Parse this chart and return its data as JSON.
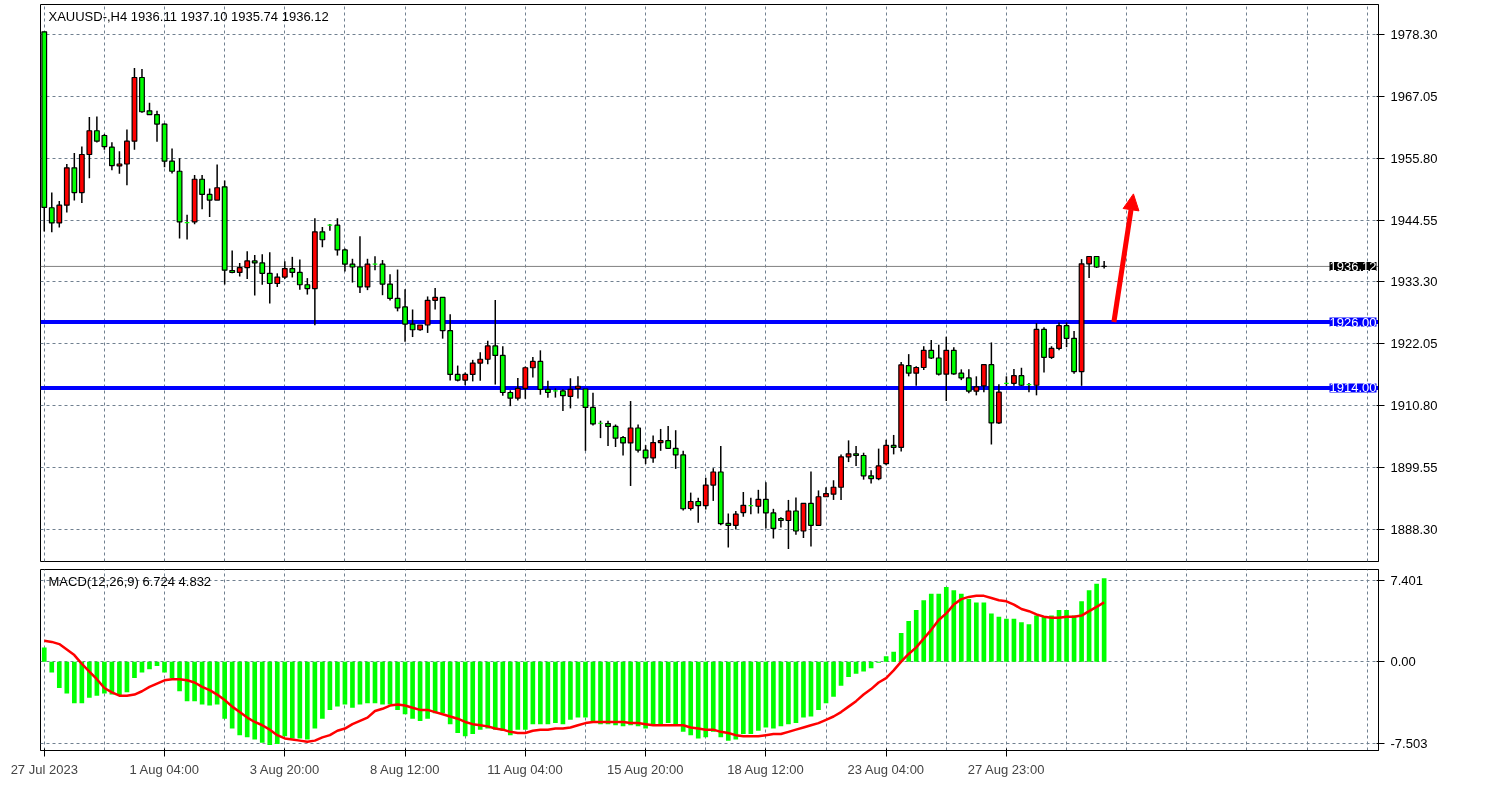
{
  "chart_data": [
    {
      "type": "candlestick",
      "title": "XAUUSD-,H4  1936.11 1937.10 1935.74 1936.12",
      "categories": [
        null,
        null,
        null,
        null,
        null,
        null,
        null,
        null,
        null,
        null,
        null,
        null,
        null,
        null,
        null,
        null,
        null,
        null,
        null,
        null,
        null,
        null,
        null,
        null,
        null,
        null,
        null,
        null,
        null,
        null,
        null,
        null,
        null,
        null,
        null,
        null,
        null,
        null,
        null,
        null,
        null,
        null,
        null,
        null,
        null,
        null,
        null,
        null,
        null,
        null,
        null,
        null,
        null,
        null,
        null,
        null,
        null,
        null,
        null,
        null,
        null,
        null,
        null,
        null,
        null,
        null,
        null,
        null,
        null,
        null,
        null,
        null,
        null,
        null,
        null,
        null,
        null,
        null,
        null,
        null,
        null,
        null,
        null,
        null,
        null,
        null,
        null,
        null,
        null,
        null,
        null,
        null,
        null,
        null,
        null,
        null,
        null,
        null,
        null,
        null,
        null,
        null,
        null,
        null,
        null,
        null,
        null,
        null,
        null,
        null,
        null,
        null,
        null,
        null,
        null,
        null,
        null,
        null,
        null,
        null,
        null,
        null,
        null,
        null,
        null,
        null,
        null,
        null,
        null,
        null,
        null,
        null,
        null,
        null,
        null,
        null,
        null,
        null,
        null,
        null,
        null,
        null,
        null,
        null,
        null,
        null,
        null,
        null,
        null,
        null,
        null,
        null,
        null,
        null,
        null,
        null,
        null,
        null,
        null,
        null,
        null,
        null,
        null,
        null,
        null,
        null,
        null,
        null,
        null,
        null,
        null,
        null,
        null,
        null,
        null,
        null,
        null,
        null
      ],
      "ohlc": [
        [
          1978.82,
          1978.82,
          1942.47,
          1946.86
        ],
        [
          1946.8,
          1949.57,
          1942.36,
          1944.03
        ],
        [
          1944.03,
          1948.01,
          1943.22,
          1947.26
        ],
        [
          1947.26,
          1954.76,
          1945.94,
          1954.07
        ],
        [
          1954.07,
          1956.78,
          1948.13,
          1949.57
        ],
        [
          1949.57,
          1957.94,
          1947.67,
          1956.49
        ],
        [
          1956.49,
          1963.3,
          1952.17,
          1960.82
        ],
        [
          1960.82,
          1963.42,
          1958.69,
          1958.92
        ],
        [
          1959.95,
          1960.24,
          1957.36,
          1957.94
        ],
        [
          1957.82,
          1958.74,
          1953.61,
          1954.47
        ],
        [
          1954.42,
          1957.07,
          1952.97,
          1954.76
        ],
        [
          1954.76,
          1961.05,
          1950.9,
          1958.92
        ],
        [
          1958.92,
          1972.24,
          1957.36,
          1970.51
        ],
        [
          1970.51,
          1972.07,
          1964.11,
          1964.28
        ],
        [
          1964.45,
          1965.9,
          1963.76,
          1963.76
        ],
        [
          1963.76,
          1964.45,
          1958.8,
          1962.03
        ],
        [
          1962.03,
          1962.2,
          1954.19,
          1955.28
        ],
        [
          1955.28,
          1957.59,
          1953.03,
          1953.44
        ],
        [
          1953.44,
          1955.8,
          1941.21,
          1944.21
        ],
        [
          1944.09,
          1945.53,
          1941.03,
          1944.09
        ],
        [
          1944.21,
          1952.74,
          1943.8,
          1951.99
        ],
        [
          1951.99,
          1952.74,
          1946.51,
          1949.22
        ],
        [
          1949.22,
          1950.32,
          1945.13,
          1948.19
        ],
        [
          1948.19,
          1954.65,
          1948.19,
          1950.44
        ],
        [
          1950.61,
          1951.76,
          1932.84,
          1935.44
        ],
        [
          1935.38,
          1939.01,
          1934.86,
          1935.03
        ],
        [
          1935.03,
          1936.76,
          1934.28,
          1935.9
        ],
        [
          1935.9,
          1938.9,
          1933.82,
          1937.11
        ],
        [
          1937.11,
          1938.21,
          1930.82,
          1936.76
        ],
        [
          1936.76,
          1938.32,
          1932.78,
          1934.86
        ],
        [
          1934.86,
          1938.72,
          1929.38,
          1933.01
        ],
        [
          1933.01,
          1934.86,
          1932.38,
          1934.17
        ],
        [
          1934.17,
          1937.05,
          1933.82,
          1935.72
        ],
        [
          1935.72,
          1937.86,
          1934.11,
          1935.03
        ],
        [
          1935.03,
          1937.4,
          1931.86,
          1932.78
        ],
        [
          1932.78,
          1933.99,
          1930.99,
          1932.09
        ],
        [
          1932.09,
          1944.9,
          1925.4,
          1942.42
        ],
        [
          1942.42,
          1943.28,
          1939.59,
          1940.97
        ],
        [
          1943.63,
          1943.86,
          1942.59,
          1943.63
        ],
        [
          1943.63,
          1944.9,
          1938.09,
          1939.13
        ],
        [
          1939.13,
          1939.36,
          1935.2,
          1936.53
        ],
        [
          1936.53,
          1937.51,
          1933.18,
          1936.01
        ],
        [
          1936.01,
          1941.61,
          1931.28,
          1932.38
        ],
        [
          1932.38,
          1937.51,
          1931.8,
          1936.53
        ],
        [
          1936.53,
          1937.97,
          1935.43,
          1936.53
        ],
        [
          1936.53,
          1937.28,
          1930.88,
          1932.9
        ],
        [
          1932.9,
          1934.68,
          1929.9,
          1930.3
        ],
        [
          1930.3,
          1935.55,
          1927.94,
          1928.57
        ],
        [
          1928.74,
          1931.97,
          1922.4,
          1925.63
        ],
        [
          1925.63,
          1928.28,
          1923.26,
          1924.59
        ],
        [
          1924.59,
          1925.45,
          1924.42,
          1925.45
        ],
        [
          1925.45,
          1930.65,
          1924.01,
          1929.95
        ],
        [
          1929.95,
          1932.2,
          1928.28,
          1930.47
        ],
        [
          1930.47,
          1930.47,
          1922.97,
          1924.42
        ],
        [
          1924.42,
          1927.42,
          1915.36,
          1916.45
        ],
        [
          1916.45,
          1918.07,
          1915.19,
          1915.42
        ],
        [
          1915.42,
          1916.8,
          1914.49,
          1916.45
        ],
        [
          1916.45,
          1919.11,
          1915.19,
          1918.53
        ],
        [
          1918.53,
          1920.49,
          1915.3,
          1919.22
        ],
        [
          1919.22,
          1922.57,
          1918.3,
          1921.65
        ],
        [
          1921.65,
          1930.01,
          1914.61,
          1919.92
        ],
        [
          1919.92,
          1921.59,
          1912.59,
          1913.17
        ],
        [
          1913.17,
          1913.57,
          1910.68,
          1912.13
        ],
        [
          1912.13,
          1915.82,
          1911.72,
          1913.92
        ],
        [
          1913.92,
          1917.9,
          1912.01,
          1917.67
        ],
        [
          1917.67,
          1919.63,
          1915.88,
          1918.82
        ],
        [
          1918.82,
          1920.84,
          1912.76,
          1913.74
        ],
        [
          1913.74,
          1915.3,
          1912.19,
          1913.17
        ],
        [
          1913.46,
          1913.92,
          1912.24,
          1913.46
        ],
        [
          1913.46,
          1913.74,
          1909.82,
          1912.59
        ],
        [
          1912.47,
          1915.76,
          1910.28,
          1913.74
        ],
        [
          1913.9,
          1916.11,
          1912.07,
          1914.3
        ],
        [
          1913.8,
          1913.8,
          1902.55,
          1910.45
        ],
        [
          1910.45,
          1913.11,
          1907.17,
          1907.45
        ],
        [
          1907.57,
          1908.03,
          1904.86,
          1907.57
        ],
        [
          1907.51,
          1908.03,
          1903.42,
          1906.99
        ],
        [
          1906.99,
          1907.34,
          1903.24,
          1904.86
        ],
        [
          1904.97,
          1905.26,
          1901.69,
          1903.99
        ],
        [
          1903.99,
          1911.61,
          1896.15,
          1906.7
        ],
        [
          1906.7,
          1907.34,
          1902.26,
          1902.67
        ],
        [
          1902.67,
          1903.59,
          1900.13,
          1901.28
        ],
        [
          1901.28,
          1905.32,
          1900.36,
          1904.05
        ],
        [
          1904.05,
          1906.53,
          1902.55,
          1904.4
        ],
        [
          1904.4,
          1907.05,
          1903.01,
          1903.01
        ],
        [
          1903.01,
          1906.3,
          1899.26,
          1901.8
        ],
        [
          1901.8,
          1902.55,
          1891.7,
          1892.0
        ],
        [
          1892.05,
          1894.94,
          1891.7,
          1893.32
        ],
        [
          1893.32,
          1894.01,
          1889.45,
          1892.57
        ],
        [
          1892.57,
          1897.65,
          1891.88,
          1896.32
        ],
        [
          1896.32,
          1899.38,
          1893.43,
          1898.69
        ],
        [
          1898.69,
          1903.42,
          1888.99,
          1889.28
        ],
        [
          1889.34,
          1891.13,
          1884.96,
          1888.99
        ],
        [
          1888.99,
          1891.59,
          1888.24,
          1891.01
        ],
        [
          1891.3,
          1895.05,
          1890.55,
          1892.63
        ],
        [
          1892.57,
          1894.01,
          1891.01,
          1892.57
        ],
        [
          1892.46,
          1895.45,
          1891.13,
          1893.72
        ],
        [
          1893.72,
          1896.84,
          1888.42,
          1891.24
        ],
        [
          1891.24,
          1891.99,
          1886.57,
          1888.42
        ],
        [
          1890.2,
          1890.44,
          1888.59,
          1889.86
        ],
        [
          1889.86,
          1893.61,
          1884.67,
          1891.59
        ],
        [
          1891.59,
          1894.07,
          1887.26,
          1887.95
        ],
        [
          1887.95,
          1892.97,
          1886.69,
          1892.97
        ],
        [
          1892.97,
          1898.8,
          1885.13,
          1888.99
        ],
        [
          1888.99,
          1895.34,
          1888.99,
          1894.19
        ],
        [
          1894.19,
          1895.92,
          1894.19,
          1894.76
        ],
        [
          1894.65,
          1897.19,
          1893.61,
          1895.92
        ],
        [
          1895.92,
          1901.86,
          1893.61,
          1901.45
        ],
        [
          1901.45,
          1904.45,
          1900.5,
          1902.0
        ],
        [
          1902.0,
          1903.42,
          1899.8,
          1901.7
        ],
        [
          1901.7,
          1902.2,
          1897.3,
          1898.0
        ],
        [
          1898.0,
          1899.0,
          1896.6,
          1897.5
        ],
        [
          1897.5,
          1902.95,
          1897.2,
          1899.8
        ],
        [
          1900.2,
          1904.57,
          1899.9,
          1903.53
        ],
        [
          1903.53,
          1905.44,
          1901.9,
          1903.19
        ],
        [
          1903.19,
          1918.7,
          1902.44,
          1918.19
        ],
        [
          1918.07,
          1920.15,
          1916.11,
          1916.69
        ],
        [
          1916.69,
          1917.95,
          1914.38,
          1917.72
        ],
        [
          1917.72,
          1921.59,
          1917.26,
          1920.84
        ],
        [
          1920.84,
          1922.74,
          1919.28,
          1919.45
        ],
        [
          1919.45,
          1921.88,
          1916.28,
          1916.51
        ],
        [
          1916.51,
          1923.32,
          1911.61,
          1920.84
        ],
        [
          1920.84,
          1921.42,
          1916.4,
          1916.57
        ],
        [
          1916.69,
          1917.38,
          1915.42,
          1915.82
        ],
        [
          1915.82,
          1917.38,
          1913.05,
          1913.4
        ],
        [
          1913.4,
          1916.11,
          1912.65,
          1914.2
        ],
        [
          1914.38,
          1918.24,
          1913.22,
          1918.24
        ],
        [
          1918.24,
          1922.28,
          1903.7,
          1907.63
        ],
        [
          1907.63,
          1914.67,
          1907.45,
          1913.22
        ],
        [
          1914.84,
          1916.11,
          1914.38,
          1914.84
        ],
        [
          1914.84,
          1917.44,
          1914.38,
          1916.22
        ],
        [
          1916.22,
          1917.67,
          1914.38,
          1914.49
        ],
        [
          1914.61,
          1914.9,
          1913.22,
          1914.61
        ],
        [
          1914.49,
          1925.8,
          1912.65,
          1924.65
        ],
        [
          1924.65,
          1925.05,
          1916.8,
          1919.57
        ],
        [
          1919.57,
          1921.59,
          1919.28,
          1921.19
        ],
        [
          1921.19,
          1925.92,
          1920.84,
          1925.34
        ],
        [
          1925.34,
          1925.92,
          1921.42,
          1923.03
        ],
        [
          1923.03,
          1924.36,
          1916.57,
          1916.97
        ],
        [
          1916.97,
          1937.45,
          1914.38,
          1936.59
        ],
        [
          1936.59,
          1937.92,
          1933.99,
          1937.92
        ],
        [
          1937.92,
          1937.92,
          1935.84,
          1936.01
        ],
        [
          1936.11,
          1937.1,
          1935.74,
          1936.12
        ],
        null,
        null,
        null,
        null,
        null,
        null,
        null,
        null,
        null,
        null,
        null,
        null,
        null,
        null,
        null,
        null,
        null,
        null,
        null,
        null,
        null,
        null,
        null,
        null,
        null,
        null,
        null,
        null,
        null,
        null,
        null,
        null,
        null,
        null,
        null,
        null
      ],
      "colors": [
        "#00ff00",
        "#00ff00",
        "#ff0000",
        "#ff0000",
        "#00ff00",
        "#ff0000",
        "#ff0000",
        "#00ff00",
        "#00ff00",
        "#00ff00",
        "#ff0000",
        "#ff0000",
        "#ff0000",
        "#00ff00",
        "#00ff00",
        "#00ff00",
        "#00ff00",
        "#00ff00",
        "#00ff00",
        "#00ff00",
        "#ff0000",
        "#00ff00",
        "#00ff00",
        "#ff0000",
        "#00ff00",
        "#00ff00",
        "#ff0000",
        "#ff0000",
        "#00ff00",
        "#00ff00",
        "#00ff00",
        "#ff0000",
        "#ff0000",
        "#00ff00",
        "#00ff00",
        "#00ff00",
        "#ff0000",
        "#00ff00",
        "#00ff00",
        "#00ff00",
        "#00ff00",
        "#00ff00",
        "#00ff00",
        "#ff0000",
        "#00ff00",
        "#00ff00",
        "#00ff00",
        "#00ff00",
        "#00ff00",
        "#00ff00",
        "#ff0000",
        "#ff0000",
        "#ff0000",
        "#00ff00",
        "#00ff00",
        "#00ff00",
        "#ff0000",
        "#ff0000",
        "#ff0000",
        "#ff0000",
        "#00ff00",
        "#00ff00",
        "#00ff00",
        "#ff0000",
        "#ff0000",
        "#ff0000",
        "#00ff00",
        "#00ff00",
        "#00ff00",
        "#00ff00",
        "#ff0000",
        "#ff0000",
        "#00ff00",
        "#00ff00",
        "#00ff00",
        "#00ff00",
        "#00ff00",
        "#00ff00",
        "#ff0000",
        "#00ff00",
        "#00ff00",
        "#ff0000",
        "#ff0000",
        "#00ff00",
        "#00ff00",
        "#00ff00",
        "#ff0000",
        "#00ff00",
        "#ff0000",
        "#ff0000",
        "#00ff00",
        "#00ff00",
        "#ff0000",
        "#ff0000",
        "#00ff00",
        "#ff0000",
        "#00ff00",
        "#00ff00",
        "#00ff00",
        "#ff0000",
        "#00ff00",
        "#ff0000",
        "#00ff00",
        "#ff0000",
        "#ff0000",
        "#ff0000",
        "#ff0000",
        "#ff0000",
        "#00ff00",
        "#00ff00",
        "#00ff00",
        "#ff0000",
        "#ff0000",
        "#00ff00",
        "#ff0000",
        "#00ff00",
        "#ff0000",
        "#ff0000",
        "#00ff00",
        "#00ff00",
        "#ff0000",
        "#00ff00",
        "#00ff00",
        "#00ff00",
        "#ff0000",
        "#ff0000",
        "#00ff00",
        "#ff0000",
        "#00ff00",
        "#ff0000",
        "#00ff00",
        "#00ff00",
        "#ff0000",
        "#00ff00",
        "#ff0000",
        "#ff0000",
        "#00ff00",
        "#00ff00",
        "#ff0000",
        "#ff0000",
        "#00ff00",
        "#ff0000",
        null,
        null,
        null,
        null,
        null,
        null,
        null,
        null,
        null,
        null,
        null,
        null,
        null,
        null,
        null,
        null,
        null,
        null,
        null,
        null,
        null,
        null,
        null,
        null,
        null,
        null,
        null,
        null,
        null,
        null,
        null,
        null,
        null,
        null,
        null,
        null
      ],
      "ylim": [
        1882.4,
        1983.8
      ],
      "yticks": [
        {
          "value": 1978.3,
          "label": "1978.30"
        },
        {
          "value": 1967.05,
          "label": "1967.05"
        },
        {
          "value": 1955.8,
          "label": "1955.80"
        },
        {
          "value": 1944.55,
          "label": "1944.55"
        },
        {
          "value": 1933.3,
          "label": "1933.30"
        },
        {
          "value": 1922.05,
          "label": "1922.05"
        },
        {
          "value": 1910.8,
          "label": "1910.80"
        },
        {
          "value": 1899.55,
          "label": "1899.55"
        },
        {
          "value": 1888.3,
          "label": "1888.30"
        }
      ],
      "ref_lines": [
        {
          "axis": "y",
          "value": 1926,
          "label": "1926.00",
          "color": "#0000ff"
        },
        {
          "axis": "y",
          "value": 1914,
          "label": "1914.00",
          "color": "#0000ff"
        },
        {
          "axis": "y",
          "value": 1936.12,
          "label": "1936.12",
          "color": "#808080"
        }
      ],
      "grid": true,
      "tick_labels": "y"
    },
    {
      "type": "bar",
      "title": "MACD(12,26,9) 6.724 4.832",
      "categories": [
        "27 Jul 2023",
        null,
        null,
        null,
        null,
        null,
        null,
        null,
        null,
        null,
        null,
        null,
        null,
        null,
        null,
        null,
        "1 Aug 04:00",
        null,
        null,
        null,
        null,
        null,
        null,
        null,
        null,
        null,
        null,
        null,
        null,
        null,
        null,
        null,
        "3 Aug 20:00",
        null,
        null,
        null,
        null,
        null,
        null,
        null,
        null,
        null,
        null,
        null,
        null,
        null,
        null,
        null,
        "8 Aug 12:00",
        null,
        null,
        null,
        null,
        null,
        null,
        null,
        null,
        null,
        null,
        null,
        null,
        null,
        null,
        null,
        "11 Aug 04:00",
        null,
        null,
        null,
        null,
        null,
        null,
        null,
        null,
        null,
        null,
        null,
        null,
        null,
        null,
        null,
        "15 Aug 20:00",
        null,
        null,
        null,
        null,
        null,
        null,
        null,
        null,
        null,
        null,
        null,
        null,
        null,
        null,
        null,
        "18 Aug 12:00",
        null,
        null,
        null,
        null,
        null,
        null,
        null,
        null,
        null,
        null,
        null,
        null,
        null,
        null,
        null,
        "23 Aug 04:00",
        null,
        null,
        null,
        null,
        null,
        null,
        null,
        null,
        null,
        null,
        null,
        null,
        null,
        null,
        null,
        "27 Aug 23:00",
        null,
        null,
        null,
        null,
        null,
        null,
        null,
        null,
        null,
        null,
        null,
        null,
        null,
        null,
        null,
        null,
        null,
        null,
        null,
        null,
        null,
        null,
        null,
        null,
        null,
        null,
        null,
        null,
        null,
        null,
        null,
        null,
        null,
        null,
        null,
        null,
        null,
        null,
        null,
        null,
        null,
        null,
        null,
        null,
        null,
        null,
        null,
        null,
        null
      ],
      "series": [
        {
          "type": "bar",
          "color": "#00ff00",
          "values": [
            1.3,
            -1.0,
            -2.4,
            -2.9,
            -3.8,
            -3.8,
            -3.3,
            -3.1,
            -2.9,
            -3.0,
            -3.1,
            -2.8,
            -1.5,
            -1.0,
            -0.7,
            -0.4,
            -1.0,
            -1.5,
            -2.7,
            -3.6,
            -3.6,
            -3.9,
            -4.0,
            -3.9,
            -5.2,
            -6.1,
            -6.7,
            -6.9,
            -7.1,
            -7.4,
            -7.6,
            -7.5,
            -6.8,
            -7.0,
            -7.0,
            -7.1,
            -6.1,
            -5.2,
            -4.4,
            -4.1,
            -3.9,
            -4.2,
            -3.9,
            -3.8,
            -3.8,
            -3.9,
            -3.9,
            -4.4,
            -4.8,
            -5.2,
            -5.4,
            -5.2,
            -4.7,
            -4.7,
            -5.7,
            -6.5,
            -6.8,
            -6.6,
            -6.2,
            -6.1,
            -6.2,
            -6.3,
            -6.7,
            -6.2,
            -6.2,
            -5.7,
            -5.7,
            -5.7,
            -5.6,
            -5.7,
            -5.3,
            -5.1,
            -5.1,
            -5.4,
            -5.7,
            -5.7,
            -5.8,
            -5.9,
            -5.8,
            -5.9,
            -6.1,
            -5.8,
            -5.8,
            -5.6,
            -5.7,
            -6.4,
            -6.7,
            -7.0,
            -6.9,
            -6.4,
            -6.9,
            -7.2,
            -7.1,
            -6.6,
            -6.6,
            -6.3,
            -6.0,
            -6.1,
            -5.9,
            -5.7,
            -5.6,
            -5.1,
            -5.0,
            -4.4,
            -3.8,
            -3.2,
            -2.2,
            -1.4,
            -1.1,
            -0.9,
            -0.6,
            -0.1,
            0.5,
            0.9,
            2.6,
            3.7,
            4.7,
            5.6,
            6.2,
            6.2,
            6.8,
            6.5,
            6.2,
            5.7,
            5.4,
            5.4,
            4.4,
            4.1,
            3.9,
            3.9,
            3.6,
            3.4,
            4.2,
            4.1,
            4.2,
            4.7,
            4.7,
            4.2,
            5.5,
            6.5,
            7.1,
            7.6,
            null,
            null,
            null,
            null,
            null,
            null,
            null,
            null,
            null,
            null,
            null,
            null,
            null,
            null,
            null,
            null,
            null,
            null,
            null,
            null,
            null,
            null,
            null,
            null,
            null,
            null,
            null,
            null,
            null,
            null,
            null,
            null,
            null,
            null,
            null,
            null
          ]
        },
        {
          "type": "line",
          "color": "#ff0000",
          "values": [
            1.9,
            1.8,
            1.6,
            1.1,
            0.6,
            -0.2,
            -0.9,
            -1.6,
            -2.4,
            -2.8,
            -3.1,
            -3.1,
            -3.0,
            -2.7,
            -2.3,
            -2.0,
            -1.7,
            -1.6,
            -1.6,
            -1.7,
            -1.9,
            -2.3,
            -2.6,
            -3.0,
            -3.5,
            -4.1,
            -4.6,
            -5.1,
            -5.5,
            -5.8,
            -6.2,
            -6.7,
            -7.0,
            -7.1,
            -7.2,
            -7.3,
            -7.2,
            -6.9,
            -6.7,
            -6.3,
            -6.1,
            -5.7,
            -5.4,
            -5.1,
            -4.5,
            -4.3,
            -4.0,
            -3.9,
            -4.0,
            -4.2,
            -4.4,
            -4.4,
            -4.6,
            -4.8,
            -5.0,
            -5.2,
            -5.5,
            -5.7,
            -5.8,
            -5.9,
            -6.1,
            -6.2,
            -6.4,
            -6.5,
            -6.5,
            -6.3,
            -6.2,
            -6.2,
            -6.1,
            -6.1,
            -6.0,
            -5.8,
            -5.6,
            -5.5,
            -5.5,
            -5.5,
            -5.5,
            -5.5,
            -5.6,
            -5.6,
            -5.7,
            -5.8,
            -5.8,
            -5.8,
            -5.8,
            -5.8,
            -6.0,
            -6.1,
            -6.2,
            -6.2,
            -6.4,
            -6.5,
            -6.7,
            -6.8,
            -6.8,
            -6.8,
            -6.7,
            -6.6,
            -6.6,
            -6.4,
            -6.2,
            -6.0,
            -5.8,
            -5.6,
            -5.3,
            -5.0,
            -4.6,
            -4.1,
            -3.6,
            -3.0,
            -2.5,
            -1.9,
            -1.5,
            -0.8,
            0.0,
            0.7,
            1.3,
            2.1,
            2.9,
            3.8,
            4.4,
            5.2,
            5.7,
            5.9,
            6.0,
            6.0,
            5.8,
            5.6,
            5.5,
            5.2,
            4.8,
            4.6,
            4.3,
            4.1,
            4.0,
            4.0,
            4.1,
            4.1,
            4.2,
            4.6,
            5.0,
            5.4,
            null,
            null,
            null,
            null,
            null,
            null,
            null,
            null,
            null,
            null,
            null,
            null,
            null,
            null,
            null,
            null,
            null,
            null,
            null,
            null,
            null,
            null,
            null,
            null,
            null,
            null,
            null,
            null,
            null,
            null,
            null,
            null,
            null,
            null,
            null,
            null
          ]
        }
      ],
      "ylim": [
        -8.1,
        8.4
      ],
      "yticks": [
        {
          "value": 7.401,
          "label": "7.401"
        },
        {
          "value": 0,
          "label": "0.00"
        },
        {
          "value": -7.503,
          "label": "-7.503"
        }
      ],
      "grid": true
    }
  ]
}
